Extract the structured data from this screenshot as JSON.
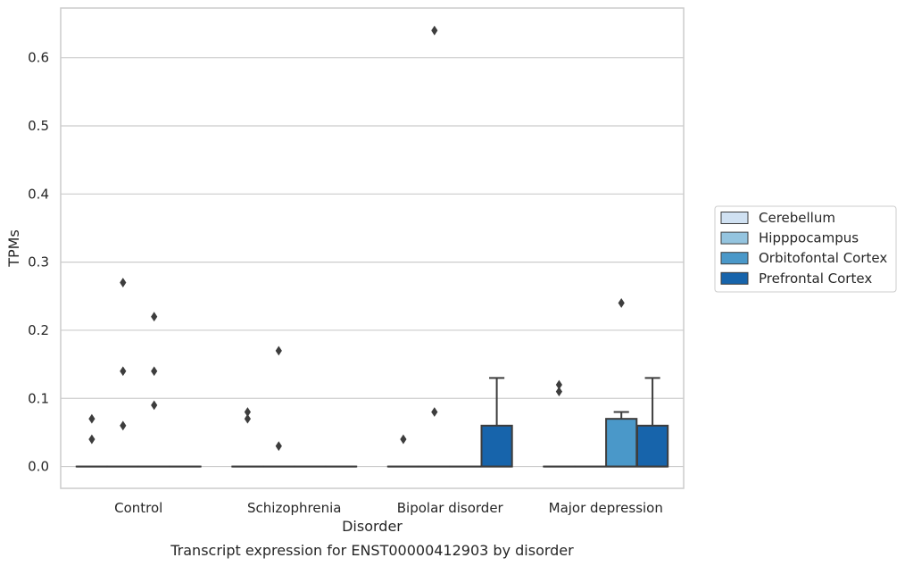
{
  "chart_data": {
    "type": "box",
    "title": "",
    "caption": "Transcript expression for ENST00000412903 by disorder",
    "xlabel": "Disorder",
    "ylabel": "TPMs",
    "ylim": [
      -0.032,
      0.673
    ],
    "yticks": [
      0.0,
      0.1,
      0.2,
      0.3,
      0.4,
      0.5,
      0.6
    ],
    "ytick_labels": [
      "0.0",
      "0.1",
      "0.2",
      "0.3",
      "0.4",
      "0.5",
      "0.6"
    ],
    "grid": "horizontal",
    "legend_placement": "right",
    "categories": [
      "Control",
      "Schizophrenia",
      "Bipolar disorder",
      "Major depression"
    ],
    "series": [
      {
        "name": "Cerebellum",
        "color": "#d0e1f2",
        "boxes": [
          {
            "q1": 0,
            "median": 0,
            "q3": 0,
            "whislo": 0,
            "whishi": 0,
            "outliers": [
              0.07,
              0.04
            ]
          },
          {
            "q1": 0,
            "median": 0,
            "q3": 0,
            "whislo": 0,
            "whishi": 0,
            "outliers": [
              0.08,
              0.07
            ]
          },
          {
            "q1": 0,
            "median": 0,
            "q3": 0,
            "whislo": 0,
            "whishi": 0,
            "outliers": [
              0.04
            ]
          },
          {
            "q1": 0,
            "median": 0,
            "q3": 0,
            "whislo": 0,
            "whishi": 0,
            "outliers": [
              0.12,
              0.11
            ]
          }
        ]
      },
      {
        "name": "Hipppocampus",
        "color": "#94c4df",
        "boxes": [
          {
            "q1": 0,
            "median": 0,
            "q3": 0,
            "whislo": 0,
            "whishi": 0,
            "outliers": [
              0.27,
              0.14,
              0.06
            ]
          },
          {
            "q1": 0,
            "median": 0,
            "q3": 0,
            "whislo": 0,
            "whishi": 0,
            "outliers": [
              0.17,
              0.03
            ]
          },
          {
            "q1": 0,
            "median": 0,
            "q3": 0,
            "whislo": 0,
            "whishi": 0,
            "outliers": [
              0.64,
              0.08
            ]
          },
          {
            "q1": 0,
            "median": 0,
            "q3": 0,
            "whislo": 0,
            "whishi": 0,
            "outliers": []
          }
        ]
      },
      {
        "name": "Orbitofontal Cortex",
        "color": "#4a98c9",
        "boxes": [
          {
            "q1": 0,
            "median": 0,
            "q3": 0,
            "whislo": 0,
            "whishi": 0,
            "outliers": [
              0.22,
              0.14,
              0.09
            ]
          },
          {
            "q1": 0,
            "median": 0,
            "q3": 0,
            "whislo": 0,
            "whishi": 0,
            "outliers": []
          },
          {
            "q1": 0,
            "median": 0,
            "q3": 0,
            "whislo": 0,
            "whishi": 0,
            "outliers": []
          },
          {
            "q1": 0,
            "median": 0,
            "q3": 0.07,
            "whislo": 0,
            "whishi": 0.08,
            "outliers": [
              0.24
            ]
          }
        ]
      },
      {
        "name": "Prefrontal Cortex",
        "color": "#1764ab",
        "boxes": [
          {
            "q1": 0,
            "median": 0,
            "q3": 0,
            "whislo": 0,
            "whishi": 0,
            "outliers": []
          },
          {
            "q1": 0,
            "median": 0,
            "q3": 0,
            "whislo": 0,
            "whishi": 0,
            "outliers": []
          },
          {
            "q1": 0,
            "median": 0,
            "q3": 0.06,
            "whislo": 0,
            "whishi": 0.13,
            "outliers": []
          },
          {
            "q1": 0,
            "median": 0,
            "q3": 0.06,
            "whislo": 0,
            "whishi": 0.13,
            "outliers": []
          }
        ]
      }
    ]
  }
}
